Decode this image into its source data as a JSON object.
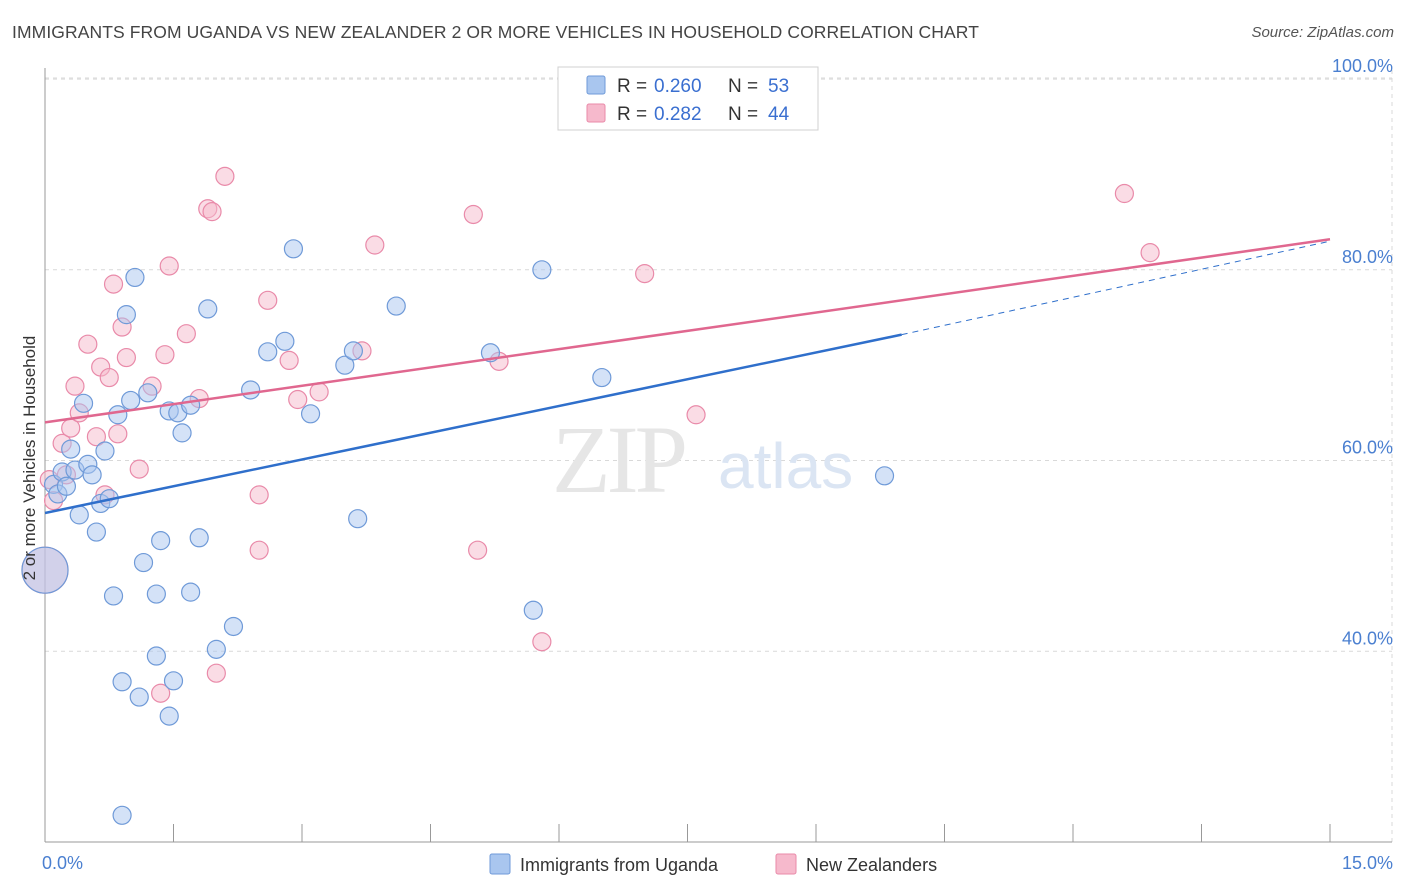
{
  "header": {
    "title": "IMMIGRANTS FROM UGANDA VS NEW ZEALANDER 2 OR MORE VEHICLES IN HOUSEHOLD CORRELATION CHART",
    "source": "Source: ZipAtlas.com"
  },
  "watermark": {
    "zip": "ZIP",
    "atlas": "atlas"
  },
  "legend": {
    "r_label": "R =",
    "n_label": "N =",
    "entries": [
      {
        "r": "0.260",
        "n": "53"
      },
      {
        "r": "0.282",
        "n": "44"
      }
    ]
  },
  "colors": {
    "uganda_fill": "#a9c6ef",
    "uganda_stroke": "#6f9ad8",
    "uganda_line": "#2f6fcb",
    "nz_fill": "#f6b9cc",
    "nz_stroke": "#e98aa9",
    "nz_line": "#e0678f",
    "grid": "#d9d9d9",
    "tick_label": "#4a7fd0"
  },
  "chart_data": {
    "type": "scatter",
    "title": "IMMIGRANTS FROM UGANDA VS NEW ZEALANDER 2 OR MORE VEHICLES IN HOUSEHOLD CORRELATION CHART",
    "xlabel": "",
    "ylabel": "2 or more Vehicles in Household",
    "xlim": [
      0,
      15
    ],
    "ylim": [
      20,
      102
    ],
    "x_tick_labels": [
      "0.0%",
      "15.0%"
    ],
    "y_ticks": [
      40,
      60,
      80,
      100
    ],
    "y_tick_labels": [
      "40.0%",
      "60.0%",
      "80.0%",
      "100.0%"
    ],
    "grid": true,
    "legend_position": "top-center",
    "series": [
      {
        "name": "Immigrants from Uganda",
        "r": 0.26,
        "n": 53,
        "trend": {
          "x0": 0,
          "y0": 54.5,
          "x1": 10.0,
          "y1": 73.2,
          "dash_to_x": 15,
          "dash_to_y": 83.0
        },
        "points": [
          [
            0.0,
            48.5
          ],
          [
            0.1,
            57.5
          ],
          [
            0.15,
            56.5
          ],
          [
            0.2,
            58.8
          ],
          [
            0.25,
            57.3
          ],
          [
            0.3,
            61.2
          ],
          [
            0.35,
            59.0
          ],
          [
            0.4,
            54.3
          ],
          [
            0.45,
            66.0
          ],
          [
            0.5,
            59.6
          ],
          [
            0.55,
            58.5
          ],
          [
            0.6,
            52.5
          ],
          [
            0.65,
            55.5
          ],
          [
            0.7,
            61.0
          ],
          [
            0.75,
            56.0
          ],
          [
            0.8,
            45.8
          ],
          [
            0.85,
            64.8
          ],
          [
            0.9,
            36.8
          ],
          [
            0.95,
            75.3
          ],
          [
            1.0,
            66.3
          ],
          [
            1.05,
            79.2
          ],
          [
            1.1,
            35.2
          ],
          [
            1.15,
            49.3
          ],
          [
            1.2,
            67.1
          ],
          [
            1.3,
            39.5
          ],
          [
            1.3,
            46.0
          ],
          [
            1.35,
            51.6
          ],
          [
            1.45,
            33.2
          ],
          [
            1.45,
            65.2
          ],
          [
            1.5,
            36.9
          ],
          [
            1.55,
            65.0
          ],
          [
            1.6,
            62.9
          ],
          [
            1.7,
            46.2
          ],
          [
            1.7,
            65.8
          ],
          [
            1.8,
            51.9
          ],
          [
            1.9,
            75.9
          ],
          [
            2.0,
            40.2
          ],
          [
            2.2,
            42.6
          ],
          [
            2.4,
            67.4
          ],
          [
            2.6,
            71.4
          ],
          [
            2.8,
            72.5
          ],
          [
            2.9,
            82.2
          ],
          [
            3.1,
            64.9
          ],
          [
            3.5,
            70.0
          ],
          [
            3.6,
            71.5
          ],
          [
            3.65,
            53.9
          ],
          [
            4.1,
            76.2
          ],
          [
            5.2,
            71.3
          ],
          [
            5.7,
            44.3
          ],
          [
            5.8,
            80.0
          ],
          [
            6.5,
            68.7
          ],
          [
            9.8,
            58.4
          ],
          [
            0.9,
            22.8
          ]
        ]
      },
      {
        "name": "New Zealanders",
        "r": 0.282,
        "n": 44,
        "trend": {
          "x0": 0,
          "y0": 64.0,
          "x1": 15,
          "y1": 83.2
        },
        "points": [
          [
            0.0,
            48.5
          ],
          [
            0.1,
            55.8
          ],
          [
            0.2,
            61.8
          ],
          [
            0.25,
            58.5
          ],
          [
            0.3,
            63.4
          ],
          [
            0.35,
            67.8
          ],
          [
            0.4,
            65.0
          ],
          [
            0.5,
            72.2
          ],
          [
            0.6,
            62.5
          ],
          [
            0.65,
            69.8
          ],
          [
            0.7,
            56.4
          ],
          [
            0.75,
            68.7
          ],
          [
            0.8,
            78.5
          ],
          [
            0.85,
            62.8
          ],
          [
            0.9,
            74.0
          ],
          [
            0.95,
            70.8
          ],
          [
            1.1,
            59.1
          ],
          [
            1.25,
            67.8
          ],
          [
            1.35,
            35.6
          ],
          [
            1.4,
            71.1
          ],
          [
            1.45,
            80.4
          ],
          [
            1.65,
            73.3
          ],
          [
            1.8,
            66.5
          ],
          [
            1.9,
            86.4
          ],
          [
            1.95,
            86.1
          ],
          [
            2.0,
            37.7
          ],
          [
            2.1,
            89.8
          ],
          [
            2.5,
            50.6
          ],
          [
            2.5,
            56.4
          ],
          [
            2.6,
            76.8
          ],
          [
            2.85,
            70.5
          ],
          [
            2.95,
            66.4
          ],
          [
            3.2,
            67.2
          ],
          [
            3.7,
            71.5
          ],
          [
            3.85,
            82.6
          ],
          [
            5.0,
            85.8
          ],
          [
            5.05,
            50.6
          ],
          [
            5.3,
            70.4
          ],
          [
            5.8,
            41.0
          ],
          [
            7.0,
            79.6
          ],
          [
            7.6,
            64.8
          ],
          [
            12.6,
            88.0
          ],
          [
            12.9,
            81.8
          ],
          [
            0.05,
            58.0
          ]
        ]
      }
    ]
  }
}
